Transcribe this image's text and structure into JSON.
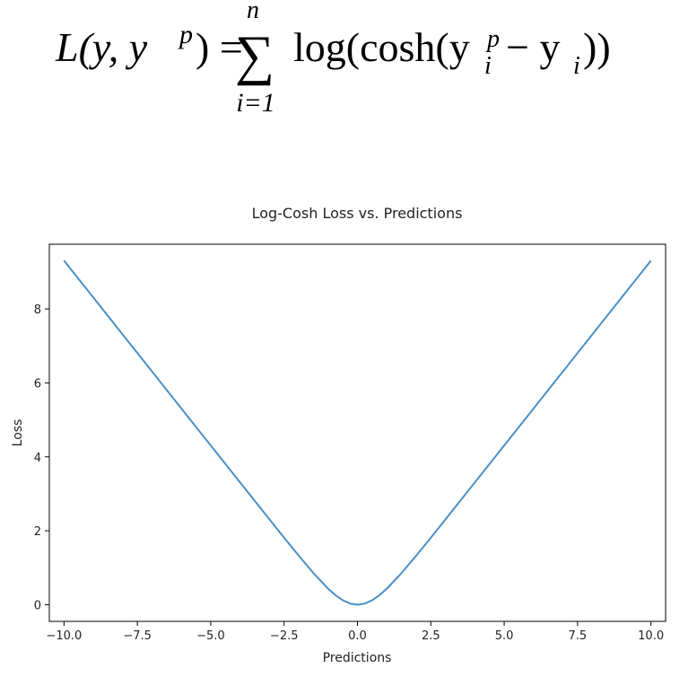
{
  "formula": {
    "lhs": "L(y, y",
    "lhs_sup": "p",
    "lhs_close": ") =",
    "sum_symbol": "∑",
    "sum_upper": "n",
    "sum_lower": "i=1",
    "rhs_prefix": "log(cosh(y",
    "rhs_sup": "p",
    "rhs_sub": "i",
    "rhs_minus": "− y",
    "rhs_sub2": "i",
    "rhs_close": "))"
  },
  "chart_data": {
    "type": "line",
    "title": "Log-Cosh Loss vs. Predictions",
    "xlabel": "Predictions",
    "ylabel": "Loss",
    "xlim": [
      -10.5,
      10.5
    ],
    "ylim": [
      -0.45,
      9.75
    ],
    "xticks": [
      -10.0,
      -7.5,
      -5.0,
      -2.5,
      0.0,
      2.5,
      5.0,
      7.5,
      10.0
    ],
    "xtick_labels": [
      "−10.0",
      "−7.5",
      "−5.0",
      "−2.5",
      "0.0",
      "2.5",
      "5.0",
      "7.5",
      "10.0"
    ],
    "yticks": [
      0,
      2,
      4,
      6,
      8
    ],
    "ytick_labels": [
      "0",
      "2",
      "4",
      "6",
      "8"
    ],
    "grid": false,
    "series": [
      {
        "color": "#4a8fc6",
        "x": [
          -10,
          -9,
          -8,
          -7,
          -6,
          -5,
          -4,
          -3,
          -2.5,
          -2,
          -1.5,
          -1,
          -0.75,
          -0.5,
          -0.25,
          0,
          0.25,
          0.5,
          0.75,
          1,
          1.5,
          2,
          2.5,
          3,
          4,
          5,
          6,
          7,
          8,
          9,
          10
        ],
        "y": [
          9.307,
          8.307,
          7.307,
          6.307,
          5.307,
          4.307,
          3.307,
          2.309,
          1.813,
          1.325,
          0.855,
          0.434,
          0.259,
          0.12,
          0.031,
          0,
          0.031,
          0.12,
          0.259,
          0.434,
          0.855,
          1.325,
          1.813,
          2.309,
          3.307,
          4.307,
          5.307,
          6.307,
          7.307,
          8.307,
          9.307
        ]
      }
    ]
  }
}
